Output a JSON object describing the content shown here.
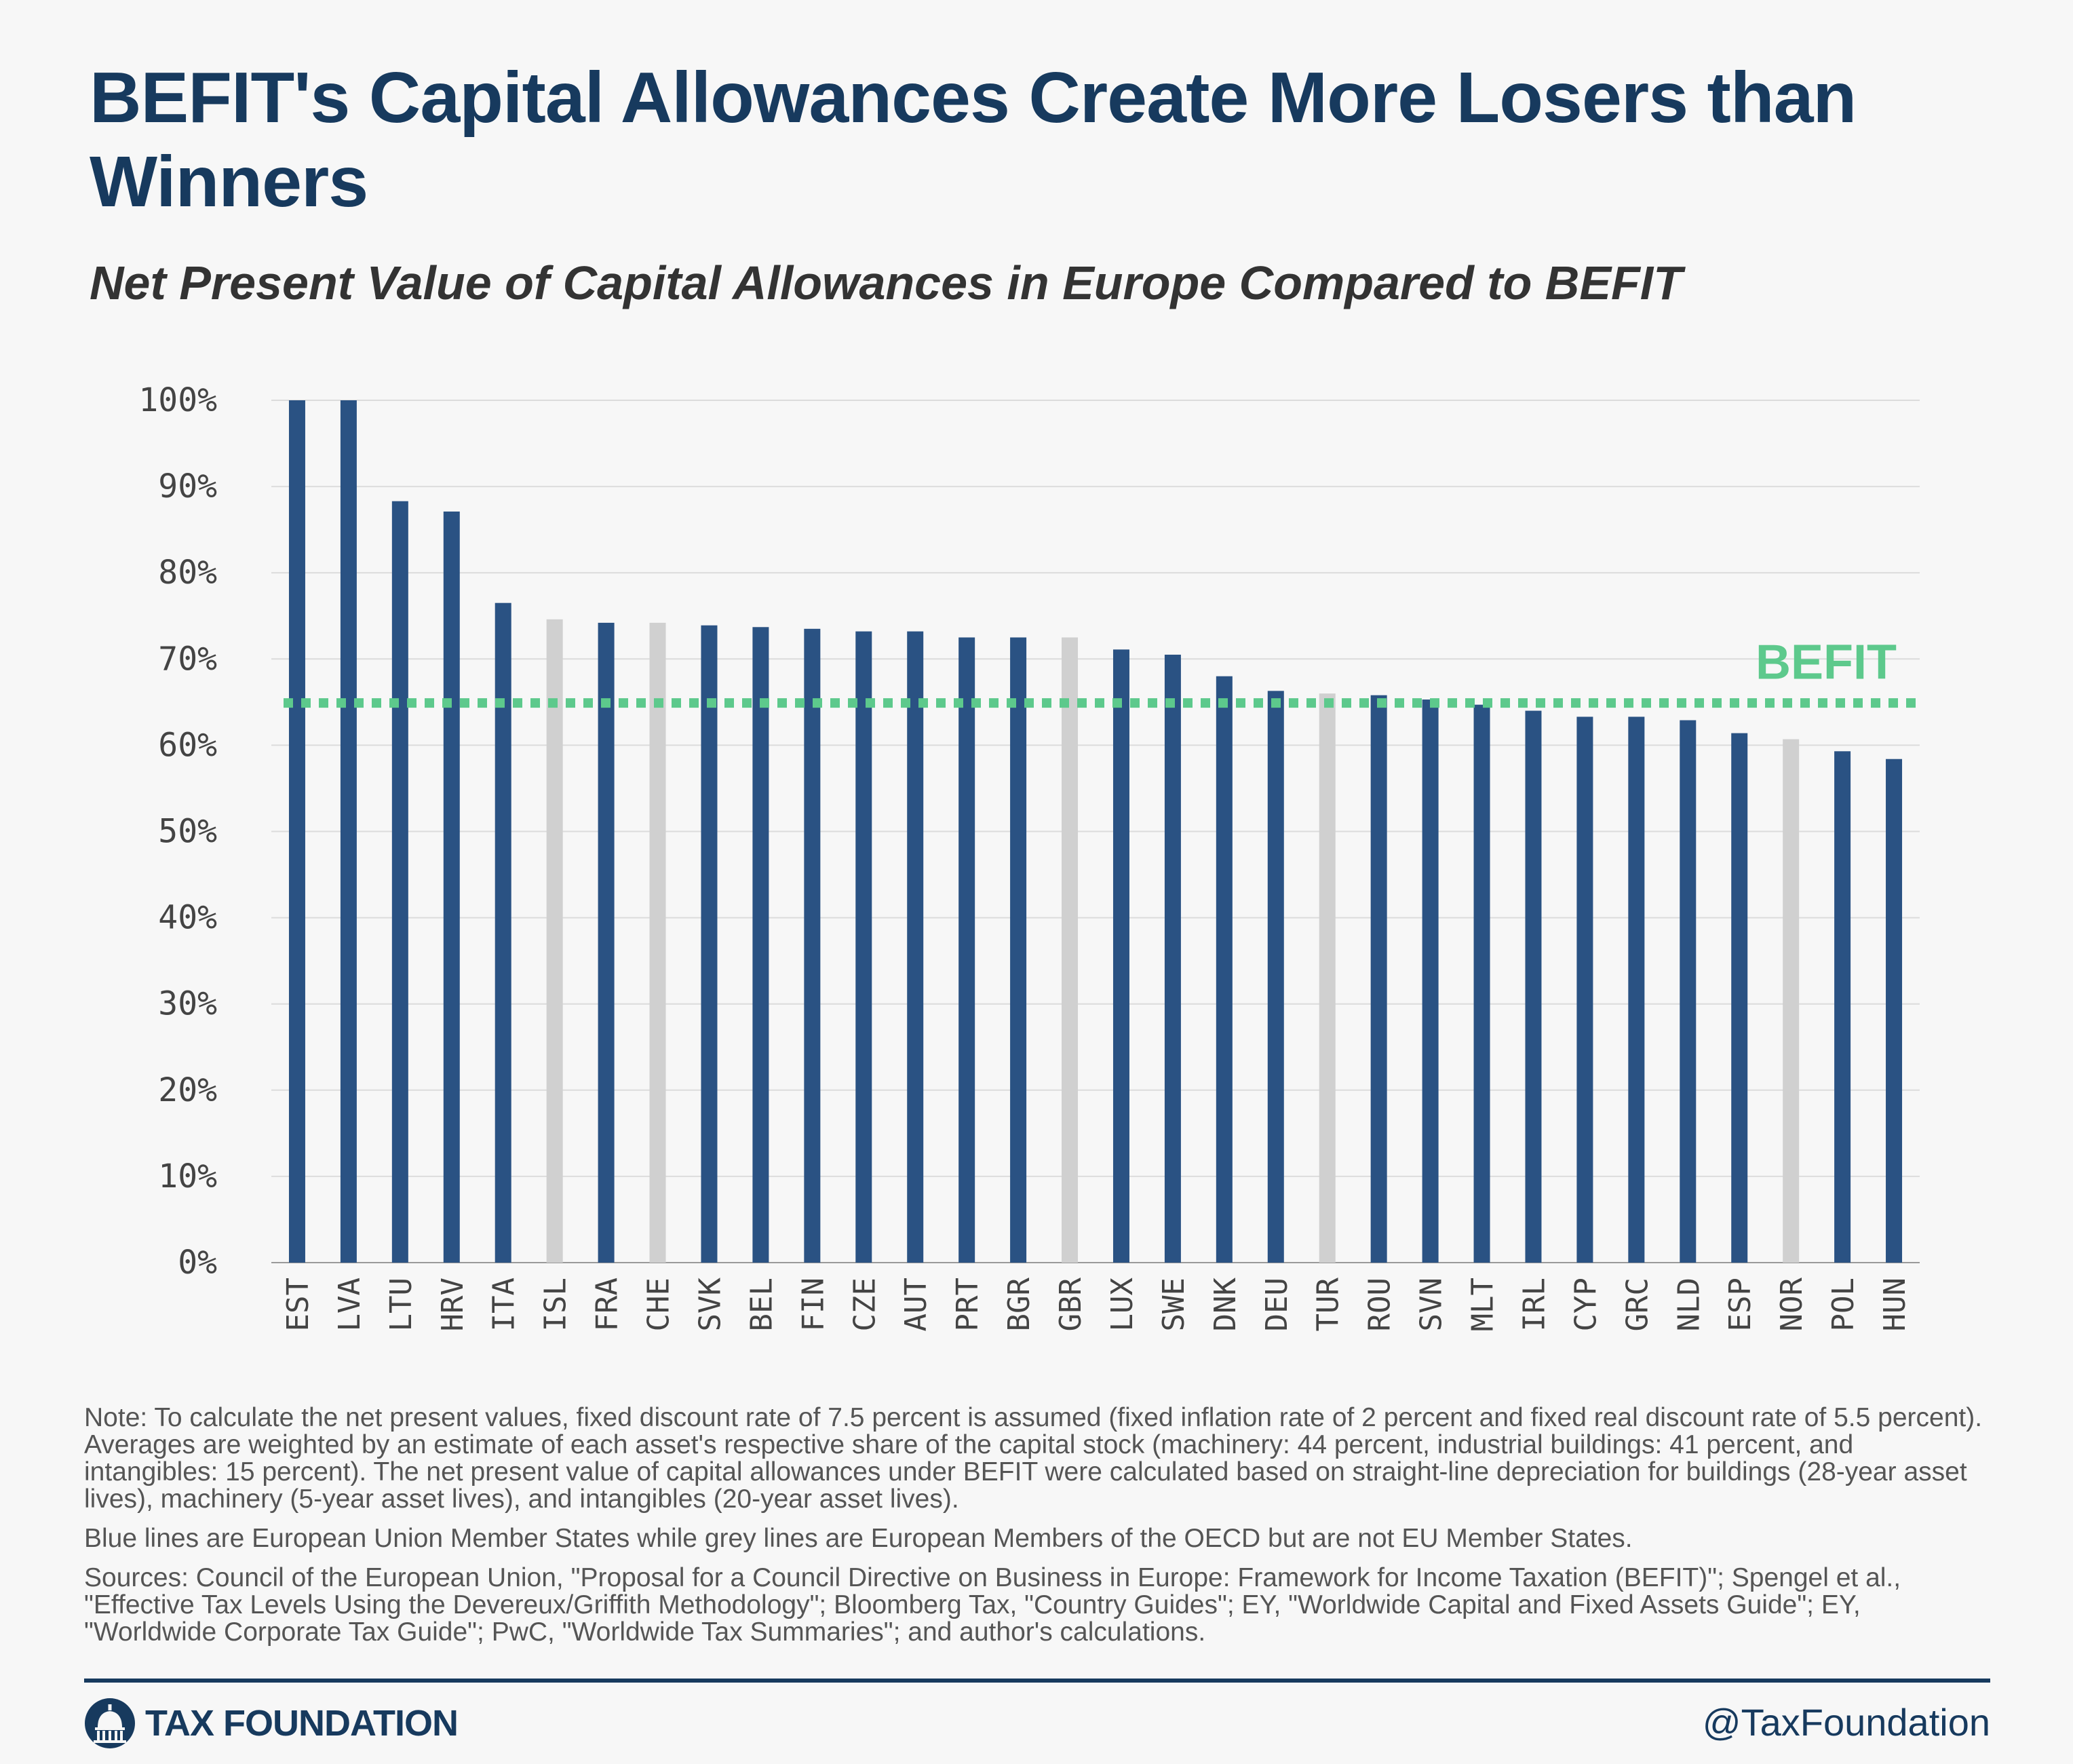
{
  "header": {
    "title": "BEFIT's Capital Allowances Create More Losers than Winners",
    "subtitle": "Net Present Value of Capital Allowances in Europe Compared to BEFIT"
  },
  "chart_data": {
    "type": "bar",
    "title": "BEFIT's Capital Allowances Create More Losers than Winners",
    "subtitle": "Net Present Value of Capital Allowances in Europe Compared to BEFIT",
    "xlabel": "",
    "ylabel": "",
    "ylim": [
      0,
      100
    ],
    "yticks": [
      "0%",
      "10%",
      "20%",
      "30%",
      "40%",
      "50%",
      "60%",
      "70%",
      "80%",
      "90%",
      "100%"
    ],
    "yticks_values": [
      0,
      10,
      20,
      30,
      40,
      50,
      60,
      70,
      80,
      90,
      100
    ],
    "grid": true,
    "categories": [
      "EST",
      "LVA",
      "LTU",
      "HRV",
      "ITA",
      "ISL",
      "FRA",
      "CHE",
      "SVK",
      "BEL",
      "FIN",
      "CZE",
      "AUT",
      "PRT",
      "BGR",
      "GBR",
      "LUX",
      "SWE",
      "DNK",
      "DEU",
      "TUR",
      "ROU",
      "SVN",
      "MLT",
      "IRL",
      "CYP",
      "GRC",
      "NLD",
      "ESP",
      "NOR",
      "POL",
      "HUN"
    ],
    "values": [
      100,
      100,
      88.3,
      87.1,
      76.5,
      74.6,
      74.2,
      74.2,
      73.9,
      73.7,
      73.5,
      73.2,
      73.2,
      72.5,
      72.5,
      72.5,
      71.1,
      70.5,
      68.0,
      66.3,
      66.0,
      65.8,
      65.3,
      64.7,
      64.0,
      63.3,
      63.3,
      62.9,
      61.4,
      60.7,
      59.3,
      58.4
    ],
    "groups": [
      "EU",
      "EU",
      "EU",
      "EU",
      "EU",
      "OECD",
      "EU",
      "OECD",
      "EU",
      "EU",
      "EU",
      "EU",
      "EU",
      "EU",
      "EU",
      "OECD",
      "EU",
      "EU",
      "EU",
      "EU",
      "OECD",
      "EU",
      "EU",
      "EU",
      "EU",
      "EU",
      "EU",
      "EU",
      "EU",
      "OECD",
      "EU",
      "EU"
    ],
    "colors": {
      "EU": "#2a5283",
      "OECD": "#d0d0d0"
    },
    "reference_line": {
      "label": "BEFIT",
      "value": 64.9,
      "color": "#5dc98c",
      "style": "dotted"
    }
  },
  "notes": {
    "note": "Note: To calculate the net present values,  fixed discount rate of 7.5 percent is assumed (fixed inflation rate of 2 percent and fixed real discount rate of 5.5 percent). Averages are weighted by an estimate of each asset's respective share of the capital stock (machinery: 44 percent, industrial buildings: 41 percent, and intangibles: 15 percent). The net present value of capital allowances under BEFIT were calculated based on straight-line depreciation for buildings (28-year asset lives), machinery (5-year asset lives), and intangibles (20-year asset lives).",
    "legend": "Blue lines are European Union Member States while grey lines are European Members of the OECD but are not EU Member States.",
    "sources": "Sources: Council of the European Union, \"Proposal for a Council Directive on Business in Europe: Framework for Income Taxation (BEFIT)\"; Spengel et al., \"Effective Tax Levels Using the Devereux/Griffith Methodology\"; Bloomberg Tax, \"Country Guides\"; EY, \"Worldwide Capital and Fixed Assets Guide\"; EY, \"Worldwide Corporate Tax Guide\"; PwC, \"Worldwide Tax Summaries\"; and author's calculations."
  },
  "footer": {
    "brand": "TAX FOUNDATION",
    "brand_icon": "capitol-dome-icon",
    "handle": "@TaxFoundation",
    "rule_color": "#173a5e"
  }
}
